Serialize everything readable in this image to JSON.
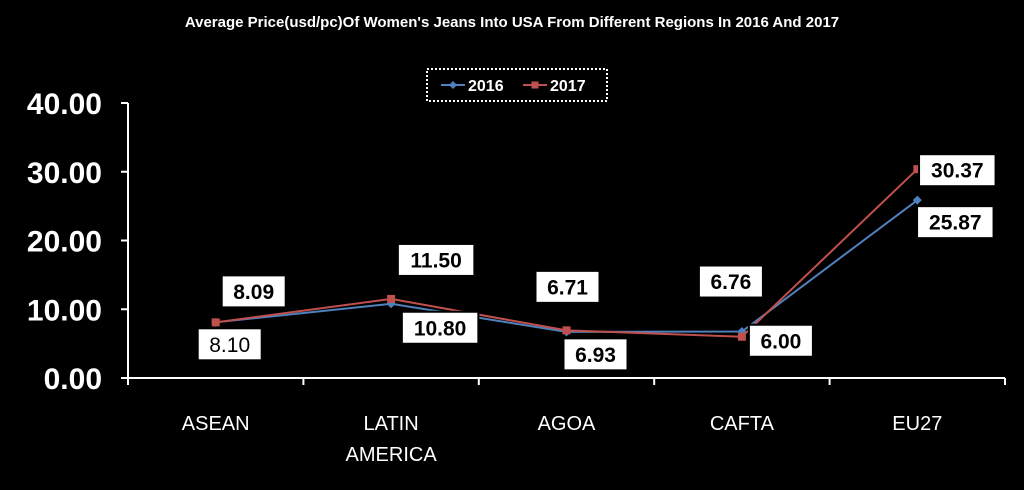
{
  "chart_data": {
    "type": "line",
    "title": "Average Price(usd/pc)Of Women's Jeans Into USA From Different Regions In 2016 And 2017",
    "xlabel": "",
    "ylabel": "",
    "ylim": [
      0,
      40
    ],
    "y_ticks": [
      "0.00",
      "10.00",
      "20.00",
      "30.00",
      "40.00"
    ],
    "categories": [
      "ASEAN",
      "LATIN AMERICA",
      "AGOA",
      "CAFTA",
      "EU27"
    ],
    "category_lines": [
      [
        "ASEAN"
      ],
      [
        "LATIN",
        "AMERICA"
      ],
      [
        "AGOA"
      ],
      [
        "CAFTA"
      ],
      [
        "EU27"
      ]
    ],
    "legend_position": "top-center",
    "series": [
      {
        "name": "2016",
        "color": "#4F81BD",
        "marker": "diamond",
        "values": [
          8.1,
          10.8,
          6.71,
          6.76,
          25.87
        ],
        "labels": [
          "8.10",
          "10.80",
          "6.71",
          "6.76",
          "25.87"
        ]
      },
      {
        "name": "2017",
        "color": "#C0504D",
        "marker": "square",
        "values": [
          8.09,
          11.5,
          6.93,
          6.0,
          30.37
        ],
        "labels": [
          "8.09",
          "11.50",
          "6.93",
          "6.00",
          "30.37"
        ]
      }
    ]
  }
}
